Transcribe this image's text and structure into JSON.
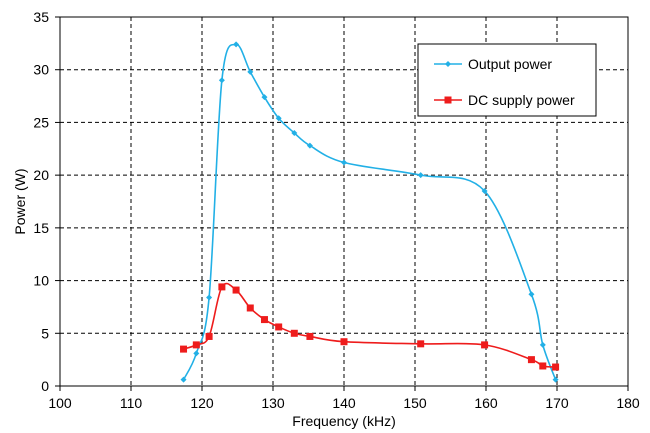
{
  "chart_data": {
    "type": "line",
    "xlabel": "Frequency (kHz)",
    "ylabel": "Power (W)",
    "xlim": [
      100,
      180
    ],
    "ylim": [
      0,
      35
    ],
    "x_ticks": [
      "100",
      "110",
      "120",
      "130",
      "140",
      "150",
      "160",
      "170",
      "180"
    ],
    "y_ticks": [
      "0",
      "5",
      "10",
      "15",
      "20",
      "25",
      "30",
      "35"
    ],
    "grid": true,
    "legend_position": "top-right",
    "series": [
      {
        "name": "Output power",
        "color": "#22b0e6",
        "marker": "diamond",
        "points": [
          [
            117.4,
            0.6
          ],
          [
            119.2,
            3.1
          ],
          [
            121.0,
            8.4
          ],
          [
            122.8,
            29.0
          ],
          [
            124.8,
            32.4
          ],
          [
            126.8,
            29.8
          ],
          [
            128.8,
            27.4
          ],
          [
            130.8,
            25.4
          ],
          [
            133.0,
            24.0
          ],
          [
            135.2,
            22.8
          ],
          [
            140.0,
            21.2
          ],
          [
            150.8,
            20.0
          ],
          [
            159.8,
            18.5
          ],
          [
            166.4,
            8.7
          ],
          [
            168.0,
            3.9
          ],
          [
            169.8,
            0.6
          ]
        ]
      },
      {
        "name": "DC supply power",
        "color": "#ee1c1c",
        "marker": "square",
        "points": [
          [
            117.4,
            3.5
          ],
          [
            119.2,
            3.9
          ],
          [
            121.0,
            4.7
          ],
          [
            122.8,
            9.4
          ],
          [
            124.8,
            9.1
          ],
          [
            126.8,
            7.4
          ],
          [
            128.8,
            6.3
          ],
          [
            130.8,
            5.6
          ],
          [
            133.0,
            5.0
          ],
          [
            135.2,
            4.7
          ],
          [
            140.0,
            4.2
          ],
          [
            150.8,
            4.0
          ],
          [
            159.8,
            3.9
          ],
          [
            166.4,
            2.5
          ],
          [
            168.0,
            1.9
          ],
          [
            169.8,
            1.8
          ]
        ]
      }
    ]
  }
}
